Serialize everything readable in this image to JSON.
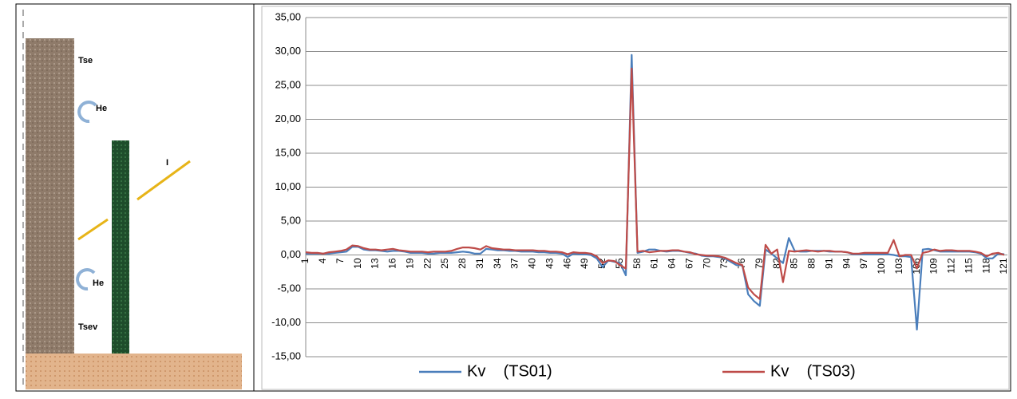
{
  "diagram": {
    "labels": [
      "Tse",
      "He",
      "I",
      "He",
      "Tsev"
    ]
  },
  "chart_data": {
    "type": "line",
    "categories": [
      "1",
      null,
      null,
      "4",
      null,
      null,
      "7",
      null,
      null,
      "10",
      null,
      null,
      "13",
      null,
      null,
      "16",
      null,
      null,
      "19",
      null,
      null,
      "22",
      null,
      null,
      "25",
      null,
      null,
      "28",
      null,
      null,
      "31",
      null,
      null,
      "34",
      null,
      null,
      "37",
      null,
      null,
      "40",
      null,
      null,
      "43",
      null,
      null,
      "46",
      null,
      null,
      "49",
      null,
      null,
      "52",
      null,
      null,
      "55",
      null,
      null,
      "58",
      null,
      null,
      "61",
      null,
      null,
      "64",
      null,
      null,
      "67",
      null,
      null,
      "70",
      null,
      null,
      "73",
      null,
      null,
      "76",
      null,
      null,
      "79",
      null,
      null,
      "82",
      null,
      null,
      "85",
      null,
      null,
      "88",
      null,
      null,
      "91",
      null,
      null,
      "94",
      null,
      null,
      "97",
      null,
      null,
      "100",
      null,
      null,
      "103",
      null,
      null,
      "106",
      null,
      null,
      "109",
      null,
      null,
      "112",
      null,
      null,
      "115",
      null,
      null,
      "118",
      null,
      null,
      "121"
    ],
    "series": [
      {
        "name": "Kv    (TS01)",
        "color": "#4a7ebb",
        "values": [
          0.2,
          0.2,
          0.2,
          0.2,
          0.2,
          0.3,
          0.4,
          0.5,
          1.2,
          1.2,
          0.8,
          0.7,
          0.7,
          0.6,
          0.5,
          0.6,
          0.6,
          0.5,
          0.3,
          0.3,
          0.3,
          0.2,
          0.2,
          0.3,
          0.3,
          0.3,
          0.4,
          0.5,
          0.4,
          0.2,
          0.2,
          0.9,
          0.8,
          0.7,
          0.7,
          0.6,
          0.6,
          0.5,
          0.5,
          0.5,
          0.4,
          0.4,
          0.3,
          0.3,
          0.2,
          -0.3,
          0.2,
          0.1,
          0.1,
          0,
          -0.5,
          -1.8,
          -0.8,
          -1.0,
          -1.2,
          -3.0,
          29.5,
          0.3,
          0.5,
          0.8,
          0.8,
          0.6,
          0.5,
          0.6,
          0.6,
          0.5,
          0.3,
          0.2,
          -0.1,
          -0.2,
          -0.2,
          -0.3,
          -0.5,
          -1.0,
          -1.5,
          -1.5,
          -5.8,
          -6.8,
          -7.5,
          0.8,
          0.2,
          -0.5,
          -1.2,
          2.5,
          0.6,
          0.5,
          0.5,
          0.6,
          0.6,
          0.6,
          0.5,
          0.5,
          0.5,
          0.4,
          0.1,
          0.1,
          0.1,
          0.1,
          0.1,
          0.1,
          0.1,
          0,
          -0.2,
          -0.2,
          -0.3,
          -11.0,
          0.8,
          0.9,
          0.7,
          0.5,
          0.5,
          0.5,
          0.5,
          0.5,
          0.5,
          0.4,
          0.2,
          -0.5,
          -0.5,
          0.2,
          0.1
        ]
      },
      {
        "name": "Kv    (TS03)",
        "color": "#be4b48",
        "values": [
          0.4,
          0.3,
          0.3,
          0.2,
          0.4,
          0.5,
          0.6,
          0.8,
          1.4,
          1.3,
          1.0,
          0.8,
          0.8,
          0.7,
          0.8,
          0.9,
          0.7,
          0.6,
          0.5,
          0.5,
          0.5,
          0.4,
          0.5,
          0.5,
          0.5,
          0.6,
          0.9,
          1.1,
          1.1,
          1.0,
          0.8,
          1.3,
          1.0,
          0.9,
          0.8,
          0.8,
          0.7,
          0.7,
          0.7,
          0.7,
          0.6,
          0.6,
          0.5,
          0.5,
          0.4,
          0.1,
          0.4,
          0.3,
          0.3,
          0.2,
          -0.2,
          -1.2,
          -0.8,
          -0.9,
          -1.5,
          -2.0,
          27.5,
          0.5,
          0.6,
          0.4,
          0.5,
          0.6,
          0.6,
          0.7,
          0.7,
          0.5,
          0.4,
          0.1,
          0,
          -0.1,
          -0.1,
          -0.2,
          -0.4,
          -0.8,
          -1.2,
          -1.5,
          -4.8,
          -5.8,
          -6.5,
          1.5,
          0.2,
          0.8,
          -4.0,
          0.6,
          0.5,
          0.6,
          0.7,
          0.6,
          0.5,
          0.6,
          0.6,
          0.5,
          0.5,
          0.4,
          0.2,
          0.2,
          0.3,
          0.3,
          0.3,
          0.3,
          0.3,
          2.2,
          -0.2,
          0,
          0,
          -2.0,
          0.3,
          0.5,
          0.8,
          0.6,
          0.7,
          0.7,
          0.6,
          0.6,
          0.6,
          0.5,
          0.3,
          -0.2,
          0.2,
          0.3,
          0
        ]
      }
    ],
    "ylim": [
      -15,
      35
    ],
    "yticks": [
      {
        "value": -15,
        "label": "-15,00"
      },
      {
        "value": -10,
        "label": "-10,00"
      },
      {
        "value": -5,
        "label": "-5,00"
      },
      {
        "value": 0,
        "label": "0,00"
      },
      {
        "value": 5,
        "label": "5,00"
      },
      {
        "value": 10,
        "label": "10,00"
      },
      {
        "value": 15,
        "label": "15,00"
      },
      {
        "value": 20,
        "label": "20,00"
      },
      {
        "value": 25,
        "label": "25,00"
      },
      {
        "value": 30,
        "label": "30,00"
      },
      {
        "value": 35,
        "label": "35,00"
      }
    ],
    "grid": true,
    "legend": "bottom"
  }
}
